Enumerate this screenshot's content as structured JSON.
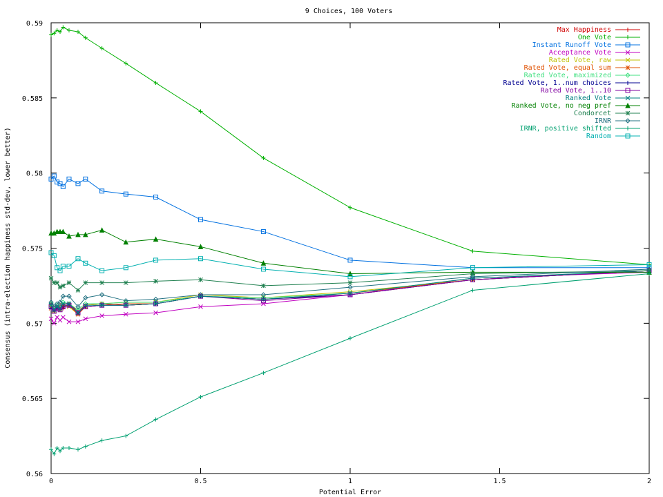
{
  "chart_data": {
    "type": "line",
    "title": "9 Choices, 100 Voters",
    "xlabel": "Potential Error",
    "ylabel": "Consensus (intra-election happiness std-dev, lower better)",
    "xlim": [
      0,
      2
    ],
    "ylim": [
      0.56,
      0.59
    ],
    "xticks": [
      0,
      0.5,
      1,
      1.5,
      2
    ],
    "xtick_labels": [
      "0",
      "0.5",
      "1",
      "1.5",
      "2"
    ],
    "yticks": [
      0.56,
      0.565,
      0.57,
      0.575,
      0.58,
      0.585,
      0.59
    ],
    "ytick_labels": [
      "0.56",
      "0.565",
      "0.57",
      "0.575",
      "0.58",
      "0.585",
      "0.59"
    ],
    "grid": false,
    "legend_position": "top-right",
    "x": [
      0,
      0.01,
      0.02,
      0.03,
      0.04,
      0.06,
      0.09,
      0.115,
      0.17,
      0.25,
      0.35,
      0.5,
      0.71,
      1,
      1.41,
      2
    ],
    "series": [
      {
        "name": "Max Happiness",
        "color": "#d00000",
        "marker": "plus",
        "values": [
          0.5712,
          0.5708,
          0.571,
          0.5712,
          0.571,
          0.5713,
          0.5708,
          0.5712,
          0.5713,
          0.5712,
          0.5713,
          0.5718,
          0.5716,
          0.5719,
          0.5729,
          0.5735
        ]
      },
      {
        "name": "One Vote",
        "color": "#00b000",
        "marker": "plus",
        "values": [
          0.5892,
          0.5893,
          0.5895,
          0.5894,
          0.5897,
          0.5895,
          0.5894,
          0.589,
          0.5883,
          0.5873,
          0.586,
          0.5841,
          0.581,
          0.5777,
          0.5748,
          0.5739
        ]
      },
      {
        "name": "Instant Runoff Vote",
        "color": "#0070e0",
        "marker": "square",
        "values": [
          0.5796,
          0.5798,
          0.5794,
          0.5793,
          0.5791,
          0.5796,
          0.5793,
          0.5796,
          0.5788,
          0.5786,
          0.5784,
          0.5769,
          0.5761,
          0.5742,
          0.5737,
          0.5737
        ]
      },
      {
        "name": "Acceptance Vote",
        "color": "#c000c0",
        "marker": "x",
        "values": [
          0.5703,
          0.57,
          0.5704,
          0.5702,
          0.5704,
          0.5701,
          0.5701,
          0.5703,
          0.5705,
          0.5706,
          0.5707,
          0.5711,
          0.5713,
          0.5719,
          0.573,
          0.5734
        ]
      },
      {
        "name": "Rated Vote, raw",
        "color": "#c0c000",
        "marker": "x",
        "values": [
          0.5711,
          0.5708,
          0.571,
          0.5709,
          0.5712,
          0.5711,
          0.5706,
          0.5712,
          0.5713,
          0.5714,
          0.5714,
          0.5719,
          0.5717,
          0.5721,
          0.5729,
          0.5735
        ]
      },
      {
        "name": "Rated Vote, equal sum",
        "color": "#e05000",
        "marker": "star",
        "values": [
          0.571,
          0.5709,
          0.571,
          0.571,
          0.5712,
          0.5712,
          0.5706,
          0.5711,
          0.5712,
          0.5713,
          0.5713,
          0.5718,
          0.5716,
          0.572,
          0.5729,
          0.5735
        ]
      },
      {
        "name": "Rated Vote, maximized",
        "color": "#40e080",
        "marker": "diamond",
        "values": [
          0.5713,
          0.571,
          0.5712,
          0.5711,
          0.5714,
          0.5713,
          0.5709,
          0.5713,
          0.5713,
          0.5714,
          0.5714,
          0.5718,
          0.5717,
          0.572,
          0.573,
          0.5735
        ]
      },
      {
        "name": "Rated Vote, 1..num choices",
        "color": "#000090",
        "marker": "plus",
        "values": [
          0.571,
          0.5708,
          0.571,
          0.5709,
          0.5711,
          0.5712,
          0.5707,
          0.5711,
          0.5712,
          0.5712,
          0.5713,
          0.5718,
          0.5716,
          0.5719,
          0.5729,
          0.5735
        ]
      },
      {
        "name": "Rated Vote, 1..10",
        "color": "#8000a0",
        "marker": "square",
        "values": [
          0.5711,
          0.5708,
          0.571,
          0.5709,
          0.5711,
          0.5712,
          0.5707,
          0.5711,
          0.5712,
          0.5712,
          0.5713,
          0.5718,
          0.5715,
          0.5719,
          0.5729,
          0.5735
        ]
      },
      {
        "name": "Ranked Vote",
        "color": "#008080",
        "marker": "x",
        "values": [
          0.5712,
          0.5709,
          0.5711,
          0.571,
          0.5713,
          0.5713,
          0.5707,
          0.5712,
          0.5712,
          0.5712,
          0.5713,
          0.5718,
          0.5716,
          0.572,
          0.573,
          0.5735
        ]
      },
      {
        "name": "Ranked Vote, no neg pref",
        "color": "#008000",
        "marker": "triangle",
        "values": [
          0.576,
          0.576,
          0.5761,
          0.5761,
          0.5761,
          0.5758,
          0.5759,
          0.5759,
          0.5762,
          0.5754,
          0.5756,
          0.5751,
          0.574,
          0.5733,
          0.5734,
          0.5734
        ]
      },
      {
        "name": "Condorcet",
        "color": "#208050",
        "marker": "star",
        "values": [
          0.573,
          0.5727,
          0.5727,
          0.5724,
          0.5725,
          0.5727,
          0.5722,
          0.5727,
          0.5727,
          0.5727,
          0.5728,
          0.5729,
          0.5725,
          0.5727,
          0.5733,
          0.5735
        ]
      },
      {
        "name": "IRNR",
        "color": "#207080",
        "marker": "diamond",
        "values": [
          0.5714,
          0.5711,
          0.5713,
          0.5714,
          0.5718,
          0.5718,
          0.5711,
          0.5717,
          0.5719,
          0.5715,
          0.5716,
          0.5719,
          0.5719,
          0.5724,
          0.5731,
          0.5736
        ]
      },
      {
        "name": "IRNR, positive shifted",
        "color": "#00a070",
        "marker": "plus",
        "values": [
          0.5616,
          0.5613,
          0.5617,
          0.5615,
          0.5617,
          0.5617,
          0.5616,
          0.5618,
          0.5622,
          0.5625,
          0.5636,
          0.5651,
          0.5667,
          0.569,
          0.5722,
          0.5733
        ]
      },
      {
        "name": "Random",
        "color": "#00b0b0",
        "marker": "square",
        "values": [
          0.5747,
          0.5745,
          0.5737,
          0.5735,
          0.5738,
          0.5738,
          0.5743,
          0.574,
          0.5735,
          0.5737,
          0.5742,
          0.5743,
          0.5736,
          0.5731,
          0.5737,
          0.5739
        ]
      }
    ]
  }
}
